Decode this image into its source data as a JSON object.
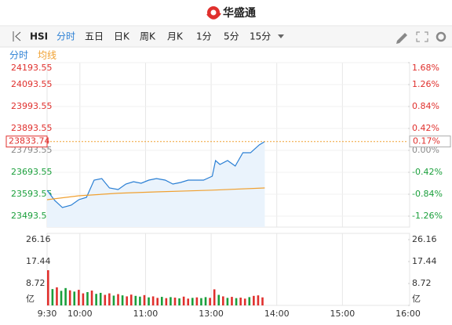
{
  "header": {
    "brand": "华盛通"
  },
  "toolbar": {
    "symbol": "HSI",
    "periods": [
      "分时",
      "五日",
      "日K",
      "周K",
      "月K",
      "1分",
      "5分",
      "15分"
    ]
  },
  "chart_data": {
    "type": "line",
    "x": [
      0,
      7,
      14,
      22,
      29,
      36,
      43,
      50,
      57,
      65,
      72,
      79,
      86,
      93,
      100,
      108,
      115,
      122,
      129,
      136,
      143,
      151,
      154,
      158,
      165,
      172,
      179,
      186,
      194,
      199
    ],
    "series": [
      {
        "name": "分时",
        "color": "#2a7fd4",
        "values": [
          23611.4,
          23565.0,
          23532.8,
          23543.6,
          23568.6,
          23579.3,
          23657.8,
          23665.0,
          23622.1,
          23615.0,
          23640.0,
          23650.7,
          23643.6,
          23657.8,
          23665.0,
          23657.8,
          23640.0,
          23647.1,
          23657.8,
          23657.8,
          23657.8,
          23675.7,
          23747.1,
          23729.3,
          23747.1,
          23722.1,
          23782.8,
          23782.8,
          23818.6,
          23833.74
        ]
      },
      {
        "name": "均线",
        "color": "#f0a030",
        "x": [
          0,
          29,
          65,
          100,
          151,
          199
        ],
        "values": [
          23568.6,
          23586.4,
          23598.0,
          23604.3,
          23612.0,
          23622.1
        ]
      }
    ],
    "xlim": [
      0,
      330
    ],
    "xticks": [
      {
        "value": 0,
        "label": "9:30"
      },
      {
        "value": 30,
        "label": "10:00"
      },
      {
        "value": 90,
        "label": "11:00"
      },
      {
        "value": 150,
        "label": "13:00"
      },
      {
        "value": 210,
        "label": "14:00"
      },
      {
        "value": 270,
        "label": "15:00"
      },
      {
        "value": 330,
        "label": "16:00"
      }
    ],
    "ylim": [
      23443.55,
      24193.55
    ],
    "yticks": [
      24193.55,
      24093.55,
      23993.55,
      23893.55,
      23793.55,
      23693.55,
      23593.55,
      23493.55
    ],
    "y2lim": [
      -1.47,
      1.68
    ],
    "y2ticks": [
      {
        "value": 1.68,
        "label": "1.68%"
      },
      {
        "value": 1.26,
        "label": "1.26%"
      },
      {
        "value": 0.84,
        "label": "0.84%"
      },
      {
        "value": 0.42,
        "label": "0.42%"
      },
      {
        "value": 0,
        "label": "0.00%"
      },
      {
        "value": -0.42,
        "label": "-0.42%"
      },
      {
        "value": -0.84,
        "label": "-0.84%"
      },
      {
        "value": -1.26,
        "label": "-1.26%"
      }
    ],
    "current_price": 23833.74,
    "current_change": {
      "value": 0.17,
      "label": "0.17%"
    },
    "up_color": "#e0302d",
    "down_color": "#1a9f3b",
    "grid": true,
    "volume": {
      "ylim": [
        0,
        28.65
      ],
      "yticks": [
        {
          "value": 0,
          "label": "亿"
        },
        8.72,
        17.44,
        26.16
      ],
      "x": [
        0,
        4,
        8,
        12,
        16,
        20,
        24,
        28,
        32,
        36,
        40,
        44,
        48,
        52,
        56,
        60,
        64,
        68,
        72,
        76,
        80,
        84,
        88,
        92,
        96,
        100,
        104,
        108,
        112,
        116,
        120,
        124,
        128,
        132,
        136,
        140,
        144,
        148,
        152,
        156,
        160,
        164,
        168,
        172,
        176,
        180,
        184,
        188,
        192,
        196
      ],
      "values": [
        14.0,
        6.5,
        7.2,
        5.8,
        6.9,
        6.0,
        5.5,
        6.2,
        4.8,
        5.3,
        5.9,
        4.6,
        5.0,
        4.2,
        4.8,
        3.9,
        4.5,
        4.0,
        3.6,
        4.3,
        3.8,
        3.5,
        4.1,
        3.2,
        3.6,
        3.0,
        3.4,
        2.9,
        3.3,
        3.1,
        2.8,
        3.5,
        2.7,
        3.0,
        3.2,
        2.9,
        3.3,
        3.0,
        6.4,
        4.2,
        3.6,
        3.0,
        3.4,
        2.9,
        3.1,
        2.7,
        3.3,
        3.8,
        4.0,
        3.2
      ],
      "colors": [
        "#e0302d",
        "#1a9f3b",
        "#e0302d",
        "#1a9f3b",
        "#1a9f3b",
        "#e0302d",
        "#1a9f3b",
        "#e0302d",
        "#e0302d",
        "#1a9f3b",
        "#e0302d",
        "#1a9f3b",
        "#1a9f3b",
        "#e0302d",
        "#e0302d",
        "#1a9f3b",
        "#e0302d",
        "#1a9f3b",
        "#e0302d",
        "#e0302d",
        "#1a9f3b",
        "#1a9f3b",
        "#e0302d",
        "#1a9f3b",
        "#e0302d",
        "#e0302d",
        "#1a9f3b",
        "#e0302d",
        "#1a9f3b",
        "#e0302d",
        "#1a9f3b",
        "#e0302d",
        "#e0302d",
        "#1a9f3b",
        "#e0302d",
        "#1a9f3b",
        "#1a9f3b",
        "#e0302d",
        "#e0302d",
        "#1a9f3b",
        "#e0302d",
        "#1a9f3b",
        "#e0302d",
        "#1a9f3b",
        "#e0302d",
        "#e0302d",
        "#1a9f3b",
        "#e0302d",
        "#e0302d",
        "#e0302d"
      ]
    }
  }
}
